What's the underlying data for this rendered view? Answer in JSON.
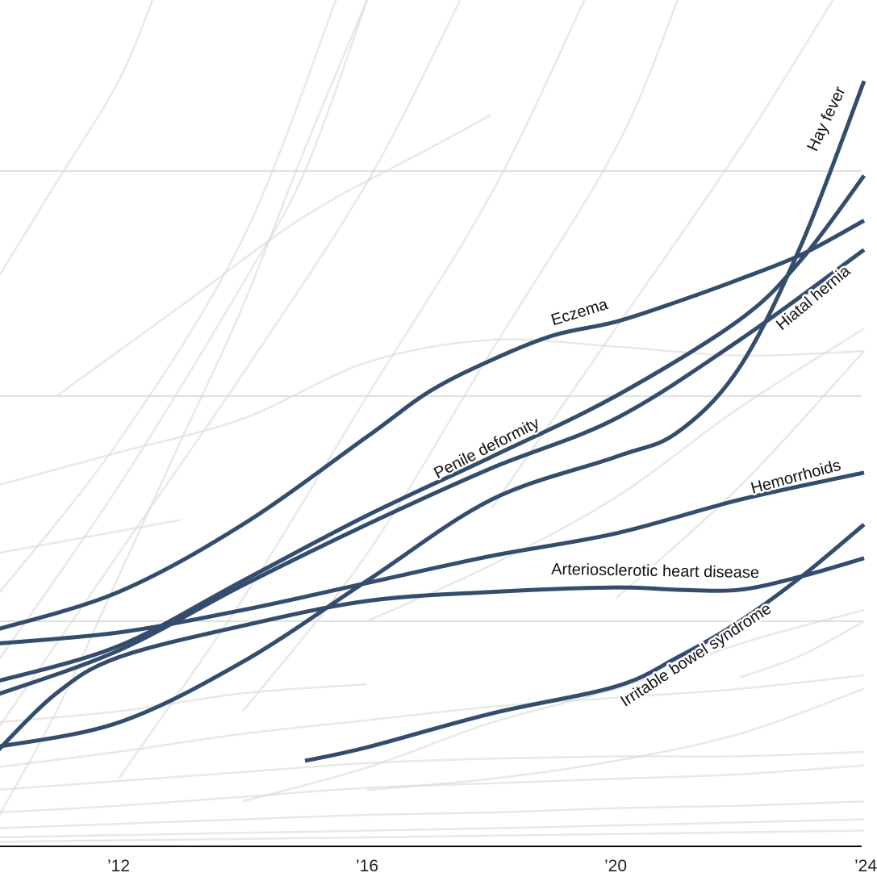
{
  "chart_data": {
    "type": "line",
    "title": "",
    "xlabel": "",
    "ylabel": "",
    "xlim": [
      2010.1,
      2024
    ],
    "ylim": [
      0,
      3.76
    ],
    "grid": true,
    "gridlines_y": [
      1,
      2,
      3
    ],
    "x_ticks": [
      {
        "value": 2012,
        "label": "’12"
      },
      {
        "value": 2016,
        "label": "’16"
      },
      {
        "value": 2020,
        "label": "’20"
      },
      {
        "value": 2024,
        "label": "’24"
      }
    ],
    "highlight_color": "#344d6e",
    "background_series_color": "#d9d9d9",
    "series": [
      {
        "name": "Hay fever",
        "points": [
          [
            2010,
            0.44
          ],
          [
            2012,
            0.55
          ],
          [
            2014,
            0.82
          ],
          [
            2016,
            1.18
          ],
          [
            2018,
            1.54
          ],
          [
            2020,
            1.73
          ],
          [
            2021,
            1.84
          ],
          [
            2022,
            2.13
          ],
          [
            2023,
            2.68
          ],
          [
            2024,
            3.4
          ]
        ]
      },
      {
        "name": "Eczema",
        "points": [
          [
            2010,
            0.96
          ],
          [
            2012,
            1.13
          ],
          [
            2014,
            1.43
          ],
          [
            2016,
            1.82
          ],
          [
            2017,
            2.02
          ],
          [
            2018,
            2.16
          ],
          [
            2019,
            2.27
          ],
          [
            2020,
            2.33
          ],
          [
            2021,
            2.42
          ],
          [
            2022,
            2.52
          ],
          [
            2023,
            2.63
          ],
          [
            2024,
            2.78
          ]
        ]
      },
      {
        "name": "Hiatal hernia",
        "points": [
          [
            2010,
            0.67
          ],
          [
            2012,
            0.87
          ],
          [
            2014,
            1.16
          ],
          [
            2016,
            1.43
          ],
          [
            2018,
            1.68
          ],
          [
            2020,
            1.9
          ],
          [
            2022,
            2.25
          ],
          [
            2024,
            2.65
          ]
        ]
      },
      {
        "name": "Penile deformity",
        "points": [
          [
            2010,
            0.73
          ],
          [
            2012,
            0.89
          ],
          [
            2014,
            1.18
          ],
          [
            2016,
            1.47
          ],
          [
            2018,
            1.73
          ],
          [
            2020,
            2.0
          ],
          [
            2022,
            2.34
          ],
          [
            2023,
            2.61
          ],
          [
            2024,
            2.98
          ]
        ]
      },
      {
        "name": "Hemorrhoids",
        "points": [
          [
            2010,
            0.9
          ],
          [
            2012,
            0.95
          ],
          [
            2014,
            1.05
          ],
          [
            2016,
            1.17
          ],
          [
            2018,
            1.29
          ],
          [
            2020,
            1.39
          ],
          [
            2022,
            1.54
          ],
          [
            2024,
            1.66
          ]
        ]
      },
      {
        "name": "Arteriosclerotic heart disease",
        "points": [
          [
            2010,
            0.41
          ],
          [
            2011,
            0.68
          ],
          [
            2012,
            0.84
          ],
          [
            2014,
            0.98
          ],
          [
            2016,
            1.09
          ],
          [
            2018,
            1.13
          ],
          [
            2020,
            1.15
          ],
          [
            2021,
            1.14
          ],
          [
            2022,
            1.14
          ],
          [
            2023,
            1.2
          ],
          [
            2024,
            1.28
          ]
        ]
      },
      {
        "name": "Irritable bowel syndrome",
        "points": [
          [
            2015,
            0.38
          ],
          [
            2016,
            0.44
          ],
          [
            2018,
            0.59
          ],
          [
            2020,
            0.71
          ],
          [
            2021,
            0.84
          ],
          [
            2022,
            1.0
          ],
          [
            2023,
            1.2
          ],
          [
            2024,
            1.43
          ]
        ]
      }
    ],
    "background_series": [
      [
        [
          2010,
          2.5
        ],
        [
          2011,
          2.95
        ],
        [
          2012,
          3.4
        ],
        [
          2012.6,
          3.8
        ]
      ],
      [
        [
          2010,
          0.1
        ],
        [
          2011,
          0.6
        ],
        [
          2012,
          1.2
        ],
        [
          2013,
          1.8
        ],
        [
          2014,
          2.4
        ],
        [
          2015,
          3.1
        ],
        [
          2016,
          3.76
        ]
      ],
      [
        [
          2010,
          0.5
        ],
        [
          2012,
          1.3
        ],
        [
          2014,
          2.1
        ],
        [
          2016,
          2.95
        ],
        [
          2017.5,
          3.76
        ]
      ],
      [
        [
          2010,
          0.8
        ],
        [
          2012,
          1.6
        ],
        [
          2014,
          2.5
        ],
        [
          2015,
          3.0
        ],
        [
          2016,
          3.76
        ]
      ],
      [
        [
          2010,
          1.1
        ],
        [
          2012,
          1.8
        ],
        [
          2014,
          2.7
        ],
        [
          2015.5,
          3.76
        ]
      ],
      [
        [
          2012,
          0.3
        ],
        [
          2014,
          1.1
        ],
        [
          2016,
          2.0
        ],
        [
          2018,
          2.9
        ],
        [
          2019.5,
          3.76
        ]
      ],
      [
        [
          2014,
          0.6
        ],
        [
          2016,
          1.3
        ],
        [
          2018,
          2.2
        ],
        [
          2020,
          3.1
        ],
        [
          2021,
          3.76
        ]
      ],
      [
        [
          2018,
          1.5
        ],
        [
          2020,
          2.3
        ],
        [
          2022,
          3.1
        ],
        [
          2023.5,
          3.76
        ]
      ],
      [
        [
          2010,
          1.6
        ],
        [
          2012,
          1.75
        ],
        [
          2014,
          1.9
        ],
        [
          2016,
          2.15
        ],
        [
          2018,
          2.25
        ],
        [
          2020,
          2.22
        ],
        [
          2022,
          2.18
        ],
        [
          2024,
          2.2
        ]
      ],
      [
        [
          2010,
          0.35
        ],
        [
          2012,
          0.42
        ],
        [
          2014,
          0.5
        ],
        [
          2016,
          0.56
        ],
        [
          2018,
          0.62
        ],
        [
          2020,
          0.66
        ],
        [
          2022,
          0.7
        ],
        [
          2024,
          0.76
        ]
      ],
      [
        [
          2010,
          0.25
        ],
        [
          2012,
          0.29
        ],
        [
          2014,
          0.33
        ],
        [
          2016,
          0.37
        ],
        [
          2018,
          0.39
        ],
        [
          2020,
          0.4
        ],
        [
          2022,
          0.4
        ],
        [
          2024,
          0.42
        ]
      ],
      [
        [
          2010,
          0.15
        ],
        [
          2012,
          0.18
        ],
        [
          2014,
          0.22
        ],
        [
          2016,
          0.26
        ],
        [
          2018,
          0.28
        ],
        [
          2020,
          0.3
        ],
        [
          2022,
          0.32
        ],
        [
          2024,
          0.36
        ]
      ],
      [
        [
          2010,
          0.08
        ],
        [
          2012,
          0.1
        ],
        [
          2014,
          0.12
        ],
        [
          2016,
          0.14
        ],
        [
          2018,
          0.15
        ],
        [
          2020,
          0.17
        ],
        [
          2022,
          0.18
        ],
        [
          2024,
          0.2
        ]
      ],
      [
        [
          2010,
          0.04
        ],
        [
          2014,
          0.06
        ],
        [
          2018,
          0.08
        ],
        [
          2024,
          0.12
        ]
      ],
      [
        [
          2010,
          0.02
        ],
        [
          2016,
          0.04
        ],
        [
          2024,
          0.07
        ]
      ],
      [
        [
          2010,
          0.55
        ],
        [
          2012,
          0.6
        ],
        [
          2014,
          0.68
        ],
        [
          2016,
          0.72
        ]
      ],
      [
        [
          2014,
          0.2
        ],
        [
          2016,
          0.35
        ],
        [
          2018,
          0.55
        ],
        [
          2020,
          0.7
        ],
        [
          2022,
          0.9
        ],
        [
          2024,
          1.05
        ]
      ],
      [
        [
          2016,
          0.25
        ],
        [
          2018,
          0.3
        ],
        [
          2020,
          0.38
        ],
        [
          2022,
          0.5
        ],
        [
          2024,
          0.7
        ]
      ],
      [
        [
          2016,
          1.0
        ],
        [
          2018,
          1.25
        ],
        [
          2020,
          1.55
        ],
        [
          2022,
          1.95
        ],
        [
          2024,
          2.3
        ]
      ],
      [
        [
          2020,
          1.1
        ],
        [
          2022,
          1.6
        ],
        [
          2024,
          2.2
        ]
      ],
      [
        [
          2010,
          1.3
        ],
        [
          2012,
          1.4
        ],
        [
          2013,
          1.45
        ]
      ],
      [
        [
          2011,
          2.0
        ],
        [
          2013,
          2.4
        ],
        [
          2015,
          2.8
        ],
        [
          2017,
          3.1
        ],
        [
          2018,
          3.25
        ]
      ],
      [
        [
          2022,
          0.75
        ],
        [
          2023,
          0.85
        ],
        [
          2024,
          1.0
        ]
      ]
    ],
    "labels": [
      "Hay fever",
      "Eczema",
      "Hiatal hernia",
      "Penile deformity",
      "Hemorrhoids",
      "Arteriosclerotic heart disease",
      "Irritable bowel syndrome"
    ]
  }
}
